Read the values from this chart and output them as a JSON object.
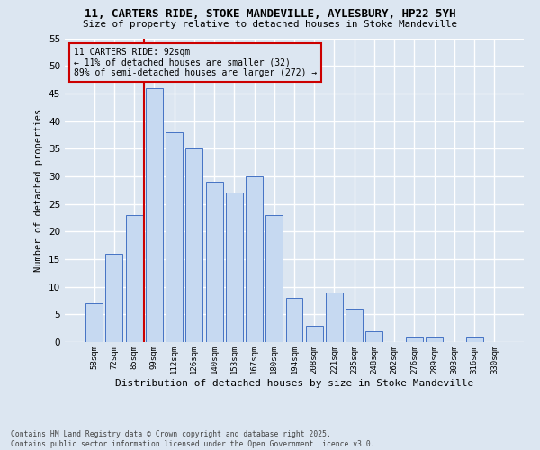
{
  "title1": "11, CARTERS RIDE, STOKE MANDEVILLE, AYLESBURY, HP22 5YH",
  "title2": "Size of property relative to detached houses in Stoke Mandeville",
  "xlabel": "Distribution of detached houses by size in Stoke Mandeville",
  "ylabel": "Number of detached properties",
  "footer1": "Contains HM Land Registry data © Crown copyright and database right 2025.",
  "footer2": "Contains public sector information licensed under the Open Government Licence v3.0.",
  "categories": [
    "58sqm",
    "72sqm",
    "85sqm",
    "99sqm",
    "112sqm",
    "126sqm",
    "140sqm",
    "153sqm",
    "167sqm",
    "180sqm",
    "194sqm",
    "208sqm",
    "221sqm",
    "235sqm",
    "248sqm",
    "262sqm",
    "276sqm",
    "289sqm",
    "303sqm",
    "316sqm",
    "330sqm"
  ],
  "values": [
    7,
    16,
    23,
    46,
    38,
    35,
    29,
    27,
    30,
    23,
    8,
    3,
    9,
    6,
    2,
    0,
    1,
    1,
    0,
    1,
    0
  ],
  "bar_color": "#c6d9f1",
  "bar_edge_color": "#4472c4",
  "background_color": "#dce6f1",
  "grid_color": "#ffffff",
  "annotation_line1": "11 CARTERS RIDE: 92sqm",
  "annotation_line2": "← 11% of detached houses are smaller (32)",
  "annotation_line3": "89% of semi-detached houses are larger (272) →",
  "annotation_box_edge": "#cc0000",
  "vline_x": 2.5,
  "vline_color": "#cc0000",
  "ylim": [
    0,
    55
  ],
  "yticks": [
    0,
    5,
    10,
    15,
    20,
    25,
    30,
    35,
    40,
    45,
    50,
    55
  ]
}
